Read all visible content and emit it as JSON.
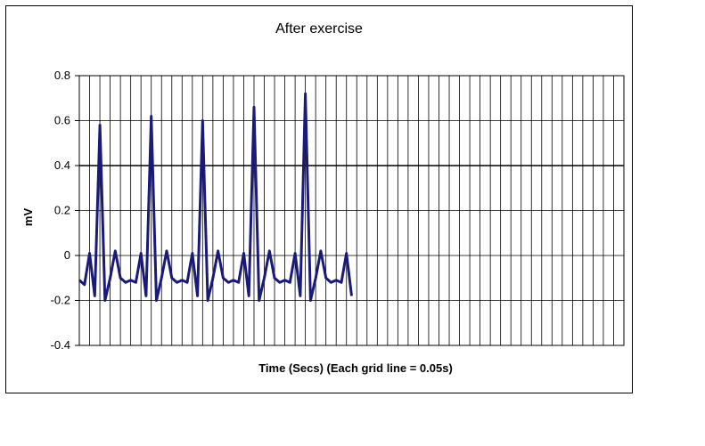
{
  "chart_data": {
    "type": "line",
    "title": "After exercise",
    "xlabel": "Time (Secs) (Each grid line = 0.05s)",
    "ylabel": "mV",
    "ylim": [
      -0.4,
      0.8
    ],
    "y_ticks": [
      "0.8",
      "0.6",
      "0.4",
      "0.2",
      "0",
      "-0.2",
      "-0.4"
    ],
    "y_tick_values": [
      0.8,
      0.6,
      0.4,
      0.2,
      0,
      -0.2,
      -0.4
    ],
    "x_grid_step": 0.05,
    "x_grid_count": 53,
    "grid": true,
    "x_tick_labels": false,
    "series_color": "#1a1a7a",
    "series": [
      {
        "sample_step": 0.025,
        "values": [
          -0.11,
          -0.13,
          0.01,
          -0.18,
          0.58,
          -0.2,
          -0.1,
          0.02,
          -0.1,
          -0.12,
          -0.11,
          -0.12,
          0.01,
          -0.18,
          0.62,
          -0.2,
          -0.1,
          0.02,
          -0.1,
          -0.12,
          -0.11,
          -0.12,
          0.01,
          -0.18,
          0.6,
          -0.2,
          -0.1,
          0.02,
          -0.1,
          -0.12,
          -0.11,
          -0.12,
          0.01,
          -0.18,
          0.66,
          -0.2,
          -0.1,
          0.02,
          -0.1,
          -0.12,
          -0.11,
          -0.12,
          0.01,
          -0.18,
          0.72,
          -0.2,
          -0.1,
          0.02,
          -0.1,
          -0.12,
          -0.11,
          -0.12,
          0.01,
          -0.18
        ]
      }
    ]
  }
}
